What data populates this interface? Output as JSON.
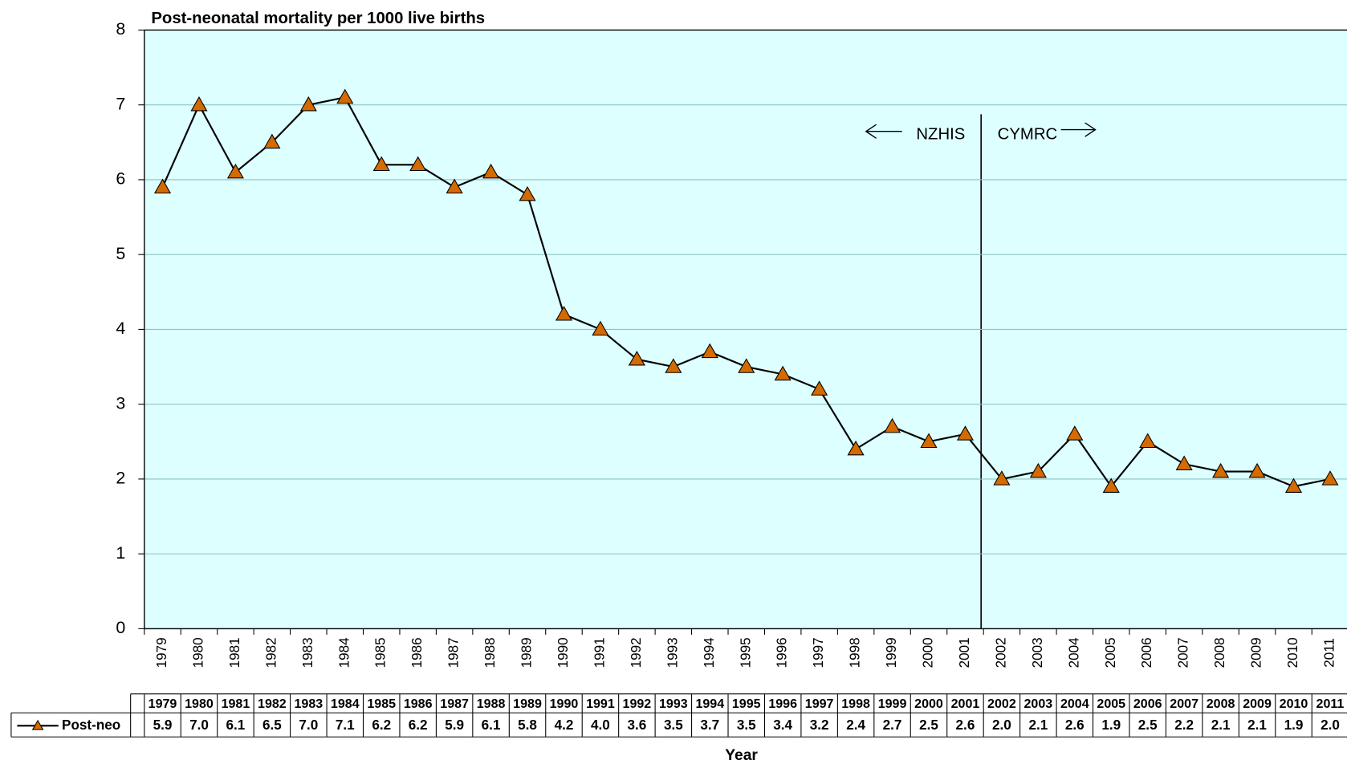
{
  "chart_data": {
    "type": "line",
    "title": "Post-neonatal mortality per 1000 live births",
    "x_label": "Year",
    "categories": [
      "1979",
      "1980",
      "1981",
      "1982",
      "1983",
      "1984",
      "1985",
      "1986",
      "1987",
      "1988",
      "1989",
      "1990",
      "1991",
      "1992",
      "1993",
      "1994",
      "1995",
      "1996",
      "1997",
      "1998",
      "1999",
      "2000",
      "2001",
      "2002",
      "2003",
      "2004",
      "2005",
      "2006",
      "2007",
      "2008",
      "2009",
      "2010",
      "2011"
    ],
    "series": [
      {
        "name": "Post-neo",
        "color": "#d46a00",
        "line_color": "#000000",
        "marker": "triangle",
        "values": [
          5.9,
          7.0,
          6.1,
          6.5,
          7.0,
          7.1,
          6.2,
          6.2,
          5.9,
          6.1,
          5.8,
          4.2,
          4.0,
          3.6,
          3.5,
          3.7,
          3.5,
          3.4,
          3.2,
          2.4,
          2.7,
          2.5,
          2.6,
          2.0,
          2.1,
          2.6,
          1.9,
          2.5,
          2.2,
          2.1,
          2.1,
          1.9,
          2.0
        ],
        "value_labels": [
          "5.9",
          "7.0",
          "6.1",
          "6.5",
          "7.0",
          "7.1",
          "6.2",
          "6.2",
          "5.9",
          "6.1",
          "5.8",
          "4.2",
          "4.0",
          "3.6",
          "3.5",
          "3.7",
          "3.5",
          "3.4",
          "3.2",
          "2.4",
          "2.7",
          "2.5",
          "2.6",
          "2.0",
          "2.1",
          "2.6",
          "1.9",
          "2.5",
          "2.2",
          "2.1",
          "2.1",
          "1.9",
          "2.0"
        ]
      }
    ],
    "annotations": [
      "NZHIS",
      "CYMRC"
    ],
    "ylim": [
      0,
      8
    ],
    "yticks": [
      0,
      1,
      2,
      3,
      4,
      5,
      6,
      7,
      8
    ],
    "grid": true,
    "plot_background": "#ddffff",
    "data_table": true
  }
}
